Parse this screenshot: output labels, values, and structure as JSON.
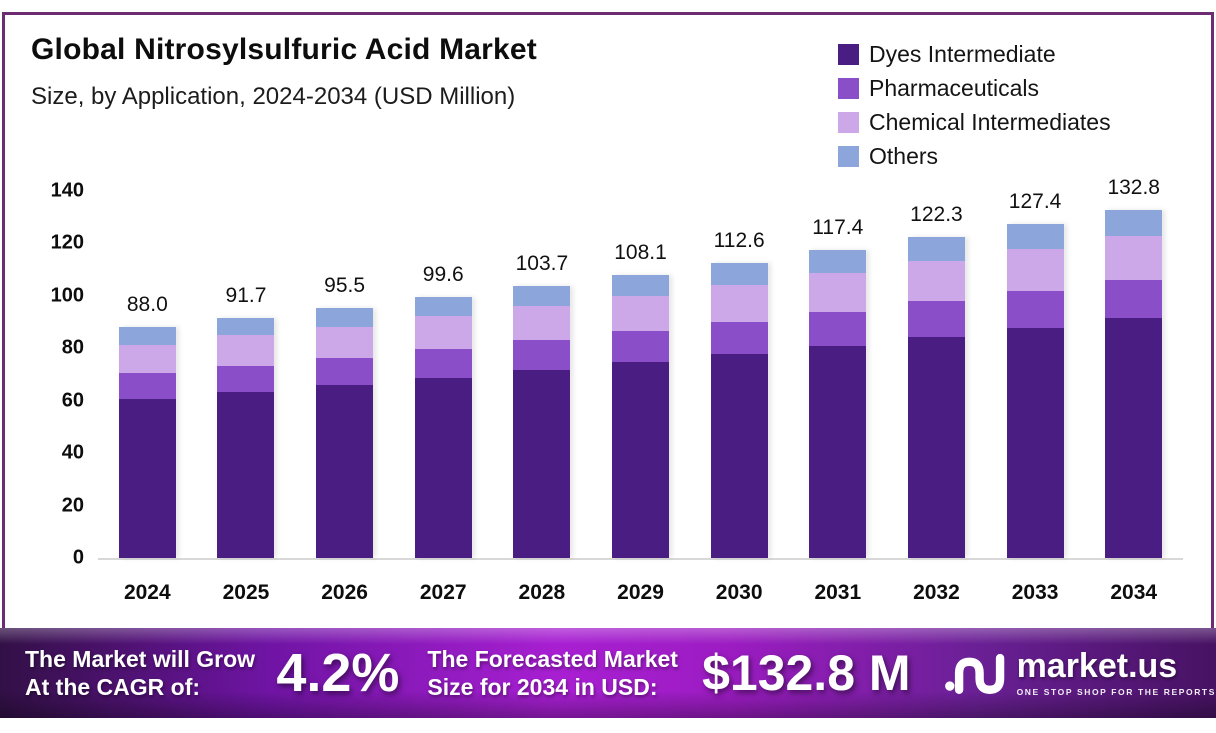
{
  "header": {
    "title": "Global Nitrosylsulfuric Acid Market",
    "subtitle": "Size, by Application, 2024-2034 (USD Million)"
  },
  "legend": [
    {
      "label": "Dyes Intermediate",
      "color": "#4a1d82"
    },
    {
      "label": "Pharmaceuticals",
      "color": "#8a4fc8"
    },
    {
      "label": "Chemical Intermediates",
      "color": "#cda8e9"
    },
    {
      "label": "Others",
      "color": "#8ca5db"
    }
  ],
  "chart_data": {
    "type": "bar",
    "stacked": true,
    "categories": [
      "2024",
      "2025",
      "2026",
      "2027",
      "2028",
      "2029",
      "2030",
      "2031",
      "2032",
      "2033",
      "2034"
    ],
    "series": [
      {
        "name": "Dyes Intermediate",
        "color": "#4a1d82",
        "values": [
          60.7,
          63.3,
          65.9,
          68.7,
          71.6,
          74.6,
          77.7,
          81.0,
          84.4,
          87.9,
          91.6
        ]
      },
      {
        "name": "Pharmaceuticals",
        "color": "#8a4fc8",
        "values": [
          9.7,
          10.1,
          10.5,
          11.0,
          11.4,
          11.9,
          12.4,
          12.9,
          13.5,
          14.0,
          14.6
        ]
      },
      {
        "name": "Chemical Intermediates",
        "color": "#cda8e9",
        "values": [
          11.0,
          11.5,
          11.9,
          12.5,
          13.0,
          13.5,
          14.1,
          14.7,
          15.3,
          15.9,
          16.6
        ]
      },
      {
        "name": "Others",
        "color": "#8ca5db",
        "values": [
          6.6,
          6.8,
          7.2,
          7.4,
          7.7,
          8.1,
          8.4,
          8.8,
          9.1,
          9.6,
          10.0
        ]
      }
    ],
    "totals": [
      "88.0",
      "91.7",
      "95.5",
      "99.6",
      "103.7",
      "108.1",
      "112.6",
      "117.4",
      "122.3",
      "127.4",
      "132.8"
    ],
    "title": "Global Nitrosylsulfuric Acid Market Size, by Application, 2024-2034 (USD Million)",
    "xlabel": "",
    "ylabel": "",
    "ylim": [
      0,
      140
    ],
    "yticks": [
      0,
      20,
      40,
      60,
      80,
      100,
      120,
      140
    ],
    "grid": false,
    "legend_position": "top-right"
  },
  "banner": {
    "left_line1": "The Market will Grow",
    "left_line2": "At the CAGR of:",
    "cagr": "4.2%",
    "mid_line1": "The Forecasted Market",
    "mid_line2": "Size for 2034 in USD:",
    "forecast": "$132.8 M",
    "brand": "market.us",
    "tagline": "ONE STOP SHOP FOR THE REPORTS"
  },
  "colors": {
    "card_border": "#6d2b71",
    "banner_left": "#321046",
    "banner_bright": "#a81fd2",
    "banner_right": "#471263",
    "baseline": "#d8d8d8"
  }
}
